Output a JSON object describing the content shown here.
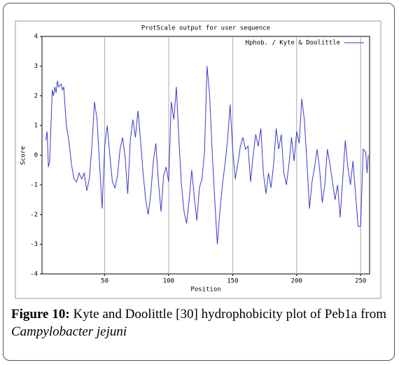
{
  "chart_data": {
    "type": "line",
    "title": "ProtScale output for user sequence",
    "x_label": "Position",
    "y_label": "Score",
    "x": [
      4,
      5,
      6,
      7,
      8,
      9,
      10,
      11,
      12,
      13,
      14,
      16,
      17,
      18,
      20,
      22,
      24,
      26,
      28,
      30,
      32,
      34,
      36,
      38,
      40,
      42,
      44,
      46,
      48,
      50,
      52,
      54,
      56,
      58,
      60,
      62,
      64,
      66,
      68,
      70,
      72,
      74,
      76,
      78,
      80,
      82,
      84,
      86,
      88,
      90,
      92,
      94,
      96,
      98,
      100,
      102,
      104,
      106,
      108,
      110,
      112,
      114,
      116,
      118,
      120,
      122,
      124,
      126,
      128,
      130,
      132,
      134,
      136,
      138,
      140,
      142,
      144,
      146,
      148,
      150,
      152,
      154,
      156,
      158,
      160,
      162,
      164,
      166,
      168,
      170,
      172,
      174,
      176,
      178,
      180,
      182,
      184,
      186,
      188,
      190,
      192,
      194,
      196,
      198,
      200,
      202,
      204,
      206,
      208,
      210,
      212,
      214,
      216,
      218,
      220,
      222,
      224,
      226,
      228,
      230,
      232,
      234,
      236,
      238,
      240,
      242,
      244,
      246,
      248,
      250,
      252,
      254,
      255,
      256
    ],
    "series": [
      {
        "name": "Hphob. / Kyte & Doolittle",
        "color": "#3a3acc",
        "values": [
          0.5,
          0.8,
          -0.4,
          -0.2,
          1.0,
          2.2,
          2.0,
          2.3,
          2.1,
          2.5,
          2.3,
          2.4,
          2.2,
          2.3,
          1.0,
          0.5,
          -0.3,
          -0.8,
          -0.9,
          -0.6,
          -0.8,
          -0.6,
          -1.2,
          -0.8,
          0.3,
          1.8,
          1.2,
          -0.3,
          -1.8,
          0.3,
          1.0,
          0,
          -0.9,
          -1.1,
          -0.7,
          0.2,
          0.6,
          -0.1,
          -1.3,
          0.5,
          1.2,
          0.6,
          1.5,
          0.5,
          -0.6,
          -1.5,
          -2.0,
          -1.3,
          -0.2,
          0.4,
          -0.9,
          -1.9,
          -0.7,
          -0.4,
          -0.9,
          1.8,
          1.2,
          2.3,
          0.5,
          -1.0,
          -1.9,
          -2.3,
          -1.5,
          -0.5,
          -1.4,
          -2.2,
          -1.1,
          -0.8,
          0.1,
          3.0,
          2.0,
          0.1,
          -1.5,
          -3.0,
          -1.9,
          -1.0,
          -0.3,
          0.5,
          1.7,
          0.2,
          -0.8,
          -0.3,
          0.3,
          0.6,
          0.2,
          0.3,
          -0.9,
          0,
          0.7,
          0.3,
          0.9,
          -0.6,
          -1.3,
          -0.6,
          -1.1,
          -0.3,
          0.9,
          0.2,
          0.7,
          -0.6,
          -1.0,
          -0.3,
          0.6,
          -0.2,
          0.8,
          0.4,
          1.9,
          1.2,
          -0.2,
          -1.8,
          -0.9,
          -0.4,
          0.2,
          -0.5,
          -1.6,
          -1.0,
          0.2,
          -0.3,
          -0.9,
          -1.5,
          -1.0,
          -2.1,
          -0.8,
          0.5,
          -0.4,
          -1.0,
          -0.2,
          -1.3,
          -2.4,
          -2.4,
          0.2,
          0.1,
          -0.6,
          0.0
        ]
      }
    ],
    "xlim": [
      1,
      257
    ],
    "ylim": [
      -4,
      4
    ],
    "xticks": [
      50,
      100,
      150,
      200,
      250
    ],
    "yticks": [
      -4,
      -3,
      -2,
      -1,
      0,
      1,
      2,
      3,
      4
    ],
    "grid": "x",
    "legend": "upper right"
  },
  "caption": {
    "label": "Figure 10:",
    "text": "Kyte and Doolittle [30] hydrophobicity plot of Peb1a from",
    "species": "Campylobacter jejuni"
  }
}
